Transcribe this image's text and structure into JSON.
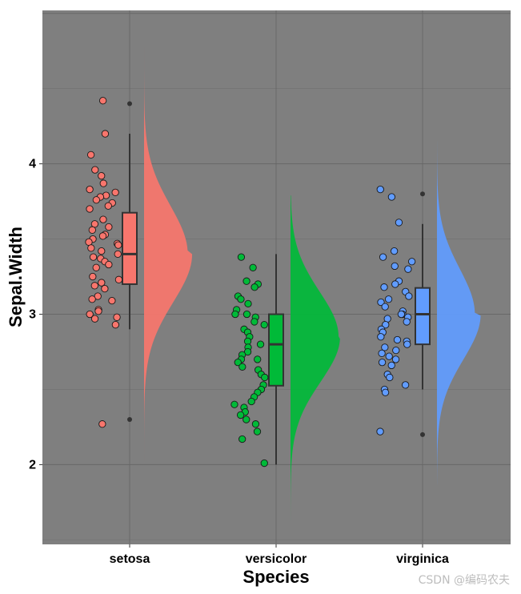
{
  "chart_data": {
    "type": "raincloud",
    "xlabel": "Species",
    "ylabel": "Sepal.Width",
    "categories": [
      "setosa",
      "versicolor",
      "virginica"
    ],
    "y_ticks": [
      2,
      3,
      4
    ],
    "ylim": [
      1.47,
      5.02
    ],
    "panel_background": "#7f7f7f",
    "colors": {
      "setosa": "#f8766d",
      "versicolor": "#00ba38",
      "virginica": "#619cff"
    },
    "groups": [
      {
        "name": "setosa",
        "box": {
          "min": 2.9,
          "q1": 3.2,
          "median": 3.4,
          "q3": 3.675,
          "max": 4.2,
          "outliers": [
            4.4,
            2.3
          ]
        },
        "points": [
          4.42,
          4.2,
          4.06,
          3.96,
          3.92,
          3.87,
          3.83,
          3.81,
          3.79,
          3.78,
          3.76,
          3.74,
          3.72,
          3.7,
          3.63,
          3.6,
          3.58,
          3.56,
          3.53,
          3.52,
          3.5,
          3.48,
          3.47,
          3.46,
          3.44,
          3.42,
          3.4,
          3.38,
          3.37,
          3.35,
          3.33,
          3.31,
          3.25,
          3.23,
          3.21,
          3.19,
          3.17,
          3.12,
          3.1,
          3.09,
          3.03,
          3.02,
          3.0,
          2.98,
          2.97,
          2.93,
          2.27
        ],
        "violin": {
          "min": 1.9,
          "max": 4.85,
          "mode": 3.4,
          "sd": 0.32,
          "w_low": 0.33,
          "w_high": 0.3
        }
      },
      {
        "name": "versicolor",
        "box": {
          "min": 2.0,
          "q1": 2.525,
          "median": 2.8,
          "q3": 3.0,
          "max": 3.4,
          "outliers": []
        },
        "points": [
          3.38,
          3.31,
          3.22,
          3.2,
          3.18,
          3.12,
          3.1,
          3.07,
          3.03,
          3.0,
          3.0,
          2.98,
          2.95,
          2.93,
          2.9,
          2.88,
          2.85,
          2.82,
          2.8,
          2.78,
          2.75,
          2.73,
          2.7,
          2.7,
          2.68,
          2.65,
          2.63,
          2.6,
          2.58,
          2.53,
          2.5,
          2.48,
          2.45,
          2.42,
          2.4,
          2.38,
          2.35,
          2.33,
          2.3,
          2.27,
          2.22,
          2.17,
          2.01
        ],
        "violin": {
          "min": 1.63,
          "max": 3.79,
          "mode": 2.85,
          "sd": 0.3,
          "w_low": 0.34,
          "w_high": 0.33
        }
      },
      {
        "name": "virginica",
        "box": {
          "min": 2.5,
          "q1": 2.8,
          "median": 3.0,
          "q3": 3.175,
          "max": 3.6,
          "outliers": [
            3.8,
            2.2
          ]
        },
        "points": [
          3.83,
          3.78,
          3.61,
          3.42,
          3.38,
          3.35,
          3.32,
          3.3,
          3.22,
          3.2,
          3.18,
          3.15,
          3.12,
          3.1,
          3.08,
          3.05,
          3.02,
          3.0,
          3.0,
          2.98,
          2.97,
          2.95,
          2.93,
          2.9,
          2.88,
          2.85,
          2.83,
          2.82,
          2.8,
          2.78,
          2.76,
          2.74,
          2.72,
          2.7,
          2.68,
          2.66,
          2.6,
          2.58,
          2.53,
          2.5,
          2.48,
          2.22
        ],
        "violin": {
          "min": 1.87,
          "max": 4.15,
          "mode": 3.0,
          "sd": 0.3,
          "w_low": 0.3,
          "w_high": 0.26
        }
      }
    ]
  },
  "watermark": "CSDN @编码农夫"
}
